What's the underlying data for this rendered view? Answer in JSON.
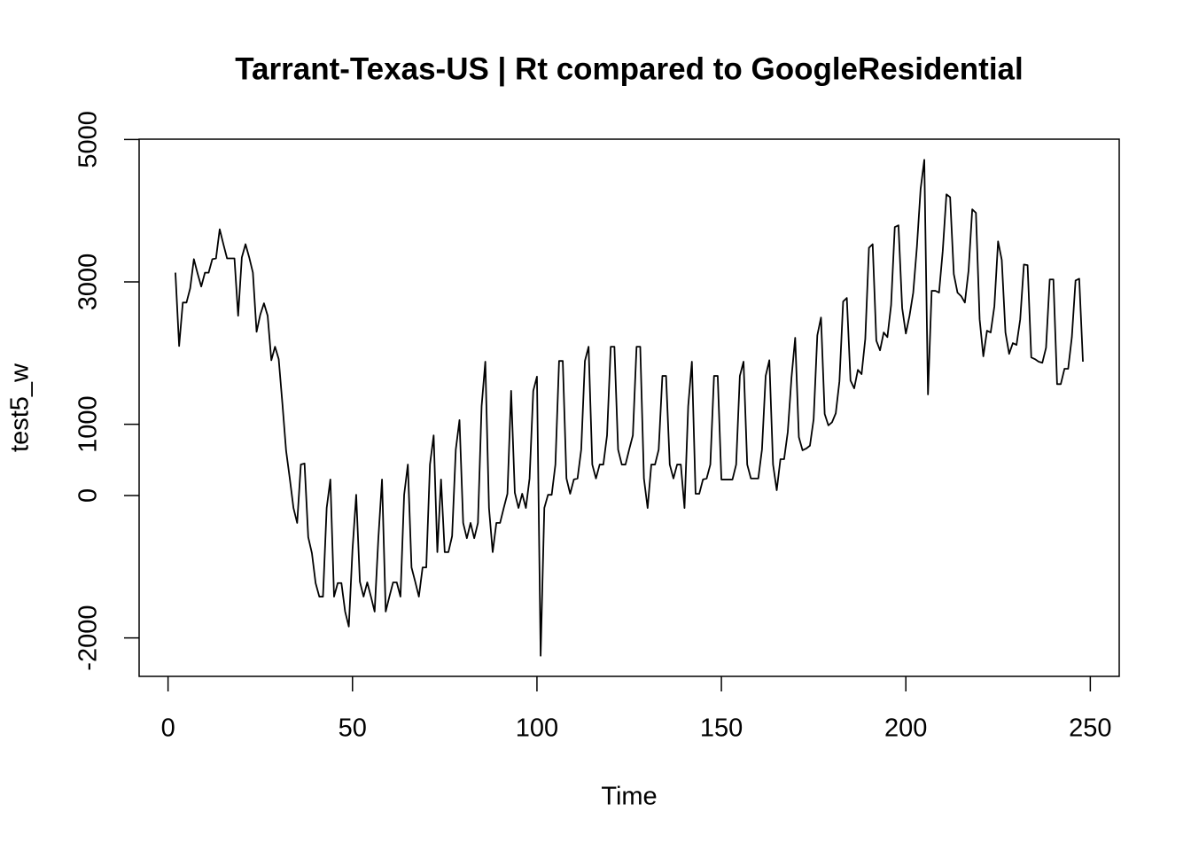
{
  "chart_data": {
    "type": "line",
    "title": "Tarrant-Texas-US | Rt compared to GoogleResidential",
    "xlabel": "Time",
    "ylabel": "test5_w",
    "color": "#000000",
    "xlim": [
      -7.84,
      257.84
    ],
    "xticks": [
      0,
      50,
      100,
      150,
      200,
      250
    ],
    "ylim": [
      -2540,
      5005
    ],
    "yticks": [
      -2000,
      0,
      1000,
      3000,
      5000
    ],
    "x": [
      2,
      3,
      4,
      5,
      6,
      7,
      8,
      9,
      10,
      11,
      12,
      13,
      14,
      15,
      16,
      17,
      18,
      19,
      20,
      21,
      22,
      23,
      24,
      25,
      26,
      27,
      28,
      29,
      30,
      31,
      32,
      33,
      34,
      35,
      36,
      37,
      38,
      39,
      40,
      41,
      42,
      43,
      44,
      45,
      46,
      47,
      48,
      49,
      50,
      51,
      52,
      53,
      54,
      55,
      56,
      57,
      58,
      59,
      60,
      61,
      62,
      63,
      64,
      65,
      66,
      67,
      68,
      69,
      70,
      71,
      72,
      73,
      74,
      75,
      76,
      77,
      78,
      79,
      80,
      81,
      82,
      83,
      84,
      85,
      86,
      87,
      88,
      89,
      90,
      91,
      92,
      93,
      94,
      95,
      96,
      97,
      98,
      99,
      100,
      101,
      102,
      103,
      104,
      105,
      106,
      107,
      108,
      109,
      110,
      111,
      112,
      113,
      114,
      115,
      116,
      117,
      118,
      119,
      120,
      121,
      122,
      123,
      124,
      125,
      126,
      127,
      128,
      129,
      130,
      131,
      132,
      133,
      134,
      135,
      136,
      137,
      138,
      139,
      140,
      141,
      142,
      143,
      144,
      145,
      146,
      147,
      148,
      149,
      150,
      151,
      152,
      153,
      154,
      155,
      156,
      157,
      158,
      159,
      160,
      161,
      162,
      163,
      164,
      165,
      166,
      167,
      168,
      169,
      170,
      171,
      172,
      173,
      174,
      175,
      176,
      177,
      178,
      179,
      180,
      181,
      182,
      183,
      184,
      185,
      186,
      187,
      188,
      189,
      190,
      191,
      192,
      193,
      194,
      195,
      196,
      197,
      198,
      199,
      200,
      201,
      202,
      203,
      204,
      205,
      206,
      207,
      208,
      209,
      210,
      211,
      212,
      213,
      214,
      215,
      216,
      217,
      218,
      219,
      220,
      221,
      222,
      223,
      224,
      225,
      226,
      227,
      228,
      229,
      230,
      231,
      232,
      233,
      234,
      235,
      236,
      237,
      238,
      239,
      240,
      241,
      242,
      243,
      244,
      245,
      246,
      247,
      248
    ],
    "values": [
      3130,
      2100,
      2710,
      2710,
      2910,
      3320,
      3120,
      2935,
      3130,
      3130,
      3320,
      3330,
      3740,
      3530,
      3330,
      3330,
      3330,
      2525,
      3345,
      3530,
      3345,
      3130,
      2300,
      2540,
      2700,
      2525,
      1900,
      2090,
      1915,
      1290,
      630,
      240,
      -175,
      -385,
      435,
      450,
      -585,
      -810,
      -1230,
      -1420,
      -1420,
      -175,
      225,
      -1420,
      -1230,
      -1230,
      -1630,
      -1840,
      -760,
      10,
      -1210,
      -1420,
      -1220,
      -1420,
      -1630,
      -610,
      225,
      -1630,
      -1420,
      -1220,
      -1220,
      -1420,
      10,
      435,
      -1010,
      -1210,
      -1420,
      -1010,
      -1010,
      435,
      845,
      -795,
      225,
      -795,
      -795,
      -570,
      645,
      1060,
      -385,
      -600,
      -385,
      -600,
      -385,
      1255,
      1880,
      -175,
      -795,
      -385,
      -385,
      -175,
      25,
      1470,
      40,
      -175,
      25,
      -175,
      240,
      1470,
      1670,
      -2250,
      -175,
      10,
      10,
      435,
      1890,
      1890,
      240,
      25,
      225,
      240,
      645,
      1890,
      2090,
      435,
      240,
      435,
      435,
      845,
      2090,
      2090,
      645,
      435,
      435,
      645,
      845,
      2090,
      2090,
      240,
      -175,
      435,
      435,
      645,
      1680,
      1680,
      435,
      240,
      435,
      435,
      -175,
      1255,
      1880,
      25,
      25,
      225,
      240,
      435,
      1680,
      1680,
      225,
      225,
      225,
      225,
      435,
      1680,
      1880,
      435,
      240,
      240,
      240,
      645,
      1680,
      1900,
      435,
      75,
      510,
      510,
      895,
      1655,
      2215,
      820,
      635,
      660,
      700,
      1070,
      2250,
      2500,
      1145,
      985,
      1030,
      1155,
      1605,
      2725,
      2775,
      1615,
      1505,
      1765,
      1705,
      2200,
      3480,
      3530,
      2175,
      2040,
      2290,
      2225,
      2675,
      3770,
      3795,
      2635,
      2275,
      2525,
      2850,
      3495,
      4305,
      4715,
      1420,
      2875,
      2875,
      2850,
      3435,
      4230,
      4190,
      3110,
      2850,
      2800,
      2710,
      3160,
      4020,
      3970,
      2475,
      1955,
      2315,
      2290,
      2660,
      3570,
      3310,
      2290,
      1990,
      2140,
      2115,
      2475,
      3245,
      3235,
      1940,
      1915,
      1880,
      1865,
      2075,
      3035,
      3035,
      1565,
      1565,
      1780,
      1780,
      2225,
      3020,
      3045,
      1880
    ]
  }
}
